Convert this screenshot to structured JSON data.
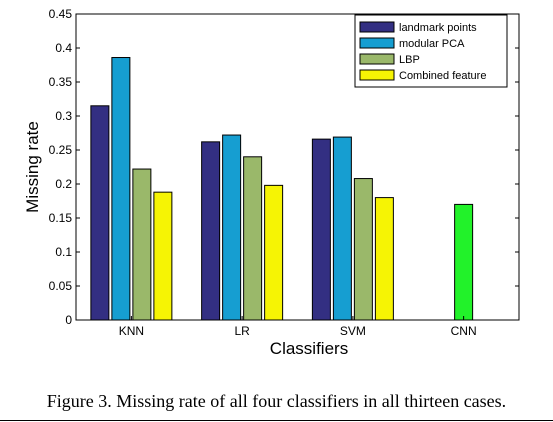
{
  "caption": "Figure 3. Missing rate of all four classifiers in all thirteen cases.",
  "chart_data": {
    "type": "bar",
    "title": "",
    "xlabel": "Classifiers",
    "ylabel": "Missing rate",
    "ylim": [
      0,
      0.45
    ],
    "yticks": [
      "0",
      "0.05",
      "0.1",
      "0.15",
      "0.2",
      "0.25",
      "0.3",
      "0.35",
      "0.4",
      "0.45"
    ],
    "categories": [
      "KNN",
      "LR",
      "SVM",
      "CNN"
    ],
    "grid": false,
    "legend_position": "top-right",
    "series": [
      {
        "name": "landmark points",
        "color": "#332f82",
        "values": [
          0.315,
          0.262,
          0.266,
          null
        ]
      },
      {
        "name": "modular PCA",
        "color": "#169ed1",
        "values": [
          0.386,
          0.272,
          0.269,
          null
        ]
      },
      {
        "name": "LBP",
        "color": "#9ab86a",
        "values": [
          0.222,
          0.24,
          0.208,
          null
        ]
      },
      {
        "name": "Combined feature",
        "color": "#f6f404",
        "values": [
          0.188,
          0.198,
          0.18,
          null
        ]
      }
    ],
    "extra_bars": [
      {
        "category": "CNN",
        "color": "#22f22a",
        "value": 0.17
      }
    ]
  }
}
